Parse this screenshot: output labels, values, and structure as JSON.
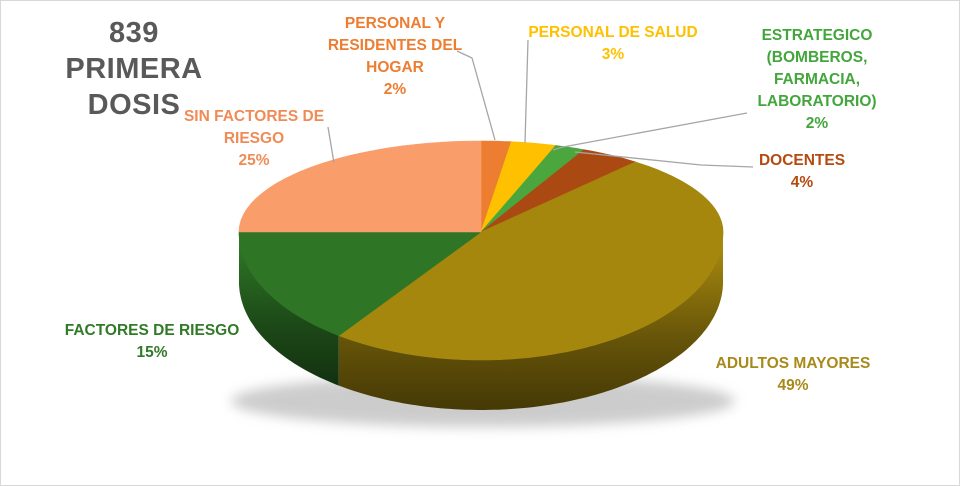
{
  "page": {
    "background": "#FFFFFF",
    "border_color": "#D8D8D8"
  },
  "title": {
    "line1": "839",
    "line2": "PRIMERA DOSIS",
    "color": "#595959"
  },
  "chart_data": {
    "type": "pie",
    "style": "3d",
    "title": "839 PRIMERA DOSIS",
    "total_doses": "839",
    "legend_position": "none",
    "labels_position": "outside-callouts",
    "leader_line_color": "#A6A6A6",
    "start_angle_deg": 0,
    "direction": "clockwise",
    "slices": [
      {
        "label": "PERSONAL Y RESIDENTES DEL HOGAR",
        "value_pct": 2,
        "color": "#ED7D31",
        "label_color": "#ED7D31",
        "label_lines": [
          "PERSONAL Y",
          "RESIDENTES DEL",
          "HOGAR",
          "2%"
        ]
      },
      {
        "label": "PERSONAL DE SALUD",
        "value_pct": 3,
        "color": "#FFC000",
        "label_color": "#FFC000",
        "label_lines": [
          "PERSONAL DE SALUD",
          "3%"
        ]
      },
      {
        "label": "ESTRATEGICO (BOMBEROS, FARMACIA, LABORATORIO)",
        "value_pct": 2,
        "color": "#4CA63E",
        "label_color": "#43A63C",
        "label_lines": [
          "ESTRATEGICO",
          "(BOMBEROS,",
          "FARMACIA,",
          "LABORATORIO)",
          "2%"
        ]
      },
      {
        "label": "DOCENTES",
        "value_pct": 4,
        "color": "#AA4A12",
        "label_color": "#B54A10",
        "label_lines": [
          "DOCENTES",
          "4%"
        ]
      },
      {
        "label": "ADULTOS MAYORES",
        "value_pct": 49,
        "color": "#A5870E",
        "label_color": "#A8891A",
        "label_lines": [
          "ADULTOS MAYORES",
          "49%"
        ]
      },
      {
        "label": "FACTORES DE RIESGO",
        "value_pct": 15,
        "color": "#2E7526",
        "label_color": "#317A28",
        "label_lines": [
          "FACTORES DE RIESGO",
          "15%"
        ]
      },
      {
        "label": "SIN FACTORES DE RIESGO",
        "value_pct": 25,
        "color": "#F99E6B",
        "label_color": "#F08B55",
        "label_lines": [
          "SIN FACTORES DE",
          "RIESGO",
          "25%"
        ]
      }
    ]
  }
}
